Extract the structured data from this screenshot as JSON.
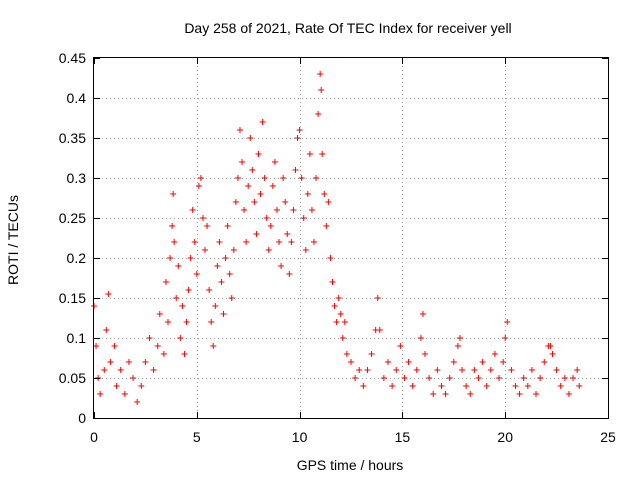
{
  "chart_data": {
    "type": "scatter",
    "title": "Day 258 of 2021, Rate Of TEC Index for receiver yell",
    "xlabel": "GPS time / hours",
    "ylabel": "ROTI / TECUs",
    "xlim": [
      0,
      25
    ],
    "ylim": [
      0,
      0.45
    ],
    "xticks": [
      0,
      5,
      10,
      15,
      20,
      25
    ],
    "yticks": [
      0,
      0.05,
      0.1,
      0.15,
      0.2,
      0.25,
      0.3,
      0.35,
      0.4,
      0.45
    ],
    "xtick_labels": [
      "0",
      "5",
      "10",
      "15",
      "20",
      "25"
    ],
    "ytick_labels": [
      "0",
      "0.05",
      "0.1",
      "0.15",
      "0.2",
      "0.25",
      "0.3",
      "0.35",
      "0.4",
      "0.45"
    ],
    "grid": true,
    "marker": "+",
    "series_color": "#ff0000",
    "series": [
      {
        "name": "ROTI",
        "points": [
          [
            0.0,
            0.14
          ],
          [
            0.1,
            0.09
          ],
          [
            0.2,
            0.05
          ],
          [
            0.3,
            0.03
          ],
          [
            0.5,
            0.06
          ],
          [
            0.6,
            0.11
          ],
          [
            0.7,
            0.155
          ],
          [
            0.8,
            0.07
          ],
          [
            1.0,
            0.09
          ],
          [
            1.1,
            0.04
          ],
          [
            1.3,
            0.06
          ],
          [
            1.5,
            0.03
          ],
          [
            1.7,
            0.07
          ],
          [
            1.9,
            0.05
          ],
          [
            2.1,
            0.02
          ],
          [
            2.3,
            0.04
          ],
          [
            2.5,
            0.07
          ],
          [
            2.7,
            0.1
          ],
          [
            2.9,
            0.06
          ],
          [
            3.1,
            0.09
          ],
          [
            3.2,
            0.13
          ],
          [
            3.4,
            0.08
          ],
          [
            3.5,
            0.17
          ],
          [
            3.6,
            0.12
          ],
          [
            3.7,
            0.2
          ],
          [
            3.8,
            0.24
          ],
          [
            3.85,
            0.28
          ],
          [
            3.9,
            0.22
          ],
          [
            4.0,
            0.15
          ],
          [
            4.1,
            0.19
          ],
          [
            4.2,
            0.1
          ],
          [
            4.3,
            0.14
          ],
          [
            4.4,
            0.08
          ],
          [
            4.5,
            0.12
          ],
          [
            4.6,
            0.16
          ],
          [
            4.7,
            0.2
          ],
          [
            4.8,
            0.26
          ],
          [
            4.9,
            0.22
          ],
          [
            5.0,
            0.18
          ],
          [
            5.1,
            0.29
          ],
          [
            5.2,
            0.3
          ],
          [
            5.3,
            0.25
          ],
          [
            5.4,
            0.21
          ],
          [
            5.5,
            0.24
          ],
          [
            5.6,
            0.16
          ],
          [
            5.7,
            0.12
          ],
          [
            5.8,
            0.09
          ],
          [
            5.9,
            0.14
          ],
          [
            6.0,
            0.19
          ],
          [
            6.1,
            0.22
          ],
          [
            6.2,
            0.17
          ],
          [
            6.3,
            0.13
          ],
          [
            6.4,
            0.2
          ],
          [
            6.5,
            0.24
          ],
          [
            6.6,
            0.18
          ],
          [
            6.7,
            0.15
          ],
          [
            6.8,
            0.21
          ],
          [
            6.9,
            0.27
          ],
          [
            7.0,
            0.3
          ],
          [
            7.1,
            0.36
          ],
          [
            7.2,
            0.32
          ],
          [
            7.3,
            0.26
          ],
          [
            7.4,
            0.22
          ],
          [
            7.5,
            0.29
          ],
          [
            7.6,
            0.35
          ],
          [
            7.7,
            0.31
          ],
          [
            7.8,
            0.27
          ],
          [
            7.9,
            0.23
          ],
          [
            8.0,
            0.33
          ],
          [
            8.1,
            0.28
          ],
          [
            8.2,
            0.37
          ],
          [
            8.3,
            0.3
          ],
          [
            8.4,
            0.25
          ],
          [
            8.5,
            0.21
          ],
          [
            8.6,
            0.24
          ],
          [
            8.7,
            0.29
          ],
          [
            8.8,
            0.32
          ],
          [
            8.9,
            0.26
          ],
          [
            9.0,
            0.22
          ],
          [
            9.1,
            0.19
          ],
          [
            9.2,
            0.3
          ],
          [
            9.3,
            0.27
          ],
          [
            9.4,
            0.23
          ],
          [
            9.5,
            0.18
          ],
          [
            9.6,
            0.22
          ],
          [
            9.7,
            0.26
          ],
          [
            9.8,
            0.31
          ],
          [
            9.9,
            0.35
          ],
          [
            10.0,
            0.36
          ],
          [
            10.1,
            0.3
          ],
          [
            10.2,
            0.25
          ],
          [
            10.3,
            0.21
          ],
          [
            10.4,
            0.28
          ],
          [
            10.5,
            0.33
          ],
          [
            10.6,
            0.26
          ],
          [
            10.7,
            0.22
          ],
          [
            10.8,
            0.3
          ],
          [
            10.9,
            0.38
          ],
          [
            11.0,
            0.43
          ],
          [
            11.05,
            0.41
          ],
          [
            11.1,
            0.33
          ],
          [
            11.2,
            0.28
          ],
          [
            11.3,
            0.24
          ],
          [
            11.4,
            0.27
          ],
          [
            11.5,
            0.2
          ],
          [
            11.6,
            0.17
          ],
          [
            11.7,
            0.14
          ],
          [
            11.8,
            0.12
          ],
          [
            11.9,
            0.15
          ],
          [
            12.0,
            0.13
          ],
          [
            12.1,
            0.1
          ],
          [
            12.2,
            0.12
          ],
          [
            12.3,
            0.08
          ],
          [
            12.5,
            0.07
          ],
          [
            12.7,
            0.05
          ],
          [
            12.9,
            0.06
          ],
          [
            13.1,
            0.04
          ],
          [
            13.3,
            0.06
          ],
          [
            13.5,
            0.08
          ],
          [
            13.7,
            0.11
          ],
          [
            13.8,
            0.15
          ],
          [
            13.9,
            0.11
          ],
          [
            14.1,
            0.05
          ],
          [
            14.3,
            0.07
          ],
          [
            14.5,
            0.04
          ],
          [
            14.7,
            0.06
          ],
          [
            14.9,
            0.09
          ],
          [
            15.1,
            0.05
          ],
          [
            15.3,
            0.07
          ],
          [
            15.5,
            0.04
          ],
          [
            15.7,
            0.06
          ],
          [
            15.9,
            0.1
          ],
          [
            16.0,
            0.13
          ],
          [
            16.1,
            0.08
          ],
          [
            16.3,
            0.05
          ],
          [
            16.5,
            0.03
          ],
          [
            16.7,
            0.06
          ],
          [
            16.9,
            0.04
          ],
          [
            17.1,
            0.03
          ],
          [
            17.3,
            0.05
          ],
          [
            17.5,
            0.07
          ],
          [
            17.7,
            0.09
          ],
          [
            17.8,
            0.1
          ],
          [
            17.9,
            0.06
          ],
          [
            18.1,
            0.04
          ],
          [
            18.3,
            0.03
          ],
          [
            18.5,
            0.06
          ],
          [
            18.7,
            0.05
          ],
          [
            18.9,
            0.07
          ],
          [
            19.1,
            0.04
          ],
          [
            19.3,
            0.06
          ],
          [
            19.5,
            0.08
          ],
          [
            19.7,
            0.05
          ],
          [
            19.9,
            0.07
          ],
          [
            20.0,
            0.1
          ],
          [
            20.1,
            0.12
          ],
          [
            20.3,
            0.06
          ],
          [
            20.5,
            0.04
          ],
          [
            20.7,
            0.03
          ],
          [
            20.9,
            0.05
          ],
          [
            21.1,
            0.04
          ],
          [
            21.3,
            0.06
          ],
          [
            21.5,
            0.03
          ],
          [
            21.7,
            0.05
          ],
          [
            21.9,
            0.07
          ],
          [
            22.1,
            0.09
          ],
          [
            22.2,
            0.09
          ],
          [
            22.3,
            0.08
          ],
          [
            22.5,
            0.06
          ],
          [
            22.7,
            0.04
          ],
          [
            22.9,
            0.05
          ],
          [
            23.1,
            0.03
          ],
          [
            23.3,
            0.05
          ],
          [
            23.5,
            0.06
          ],
          [
            23.6,
            0.04
          ]
        ]
      }
    ]
  }
}
